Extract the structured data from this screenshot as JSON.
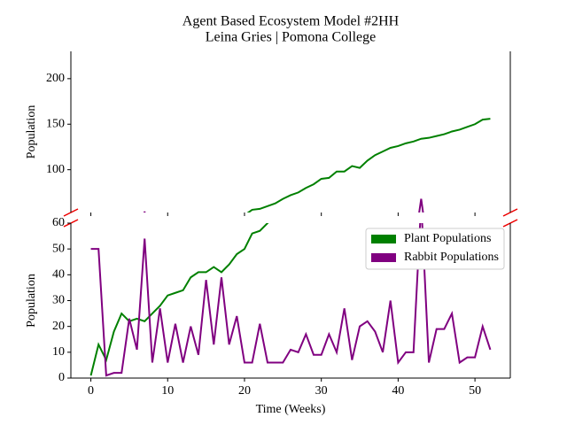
{
  "chart_data": {
    "type": "line",
    "title": "Agent Based Ecosystem Model #2HH",
    "subtitle": "Leina Gries | Pomona College",
    "xlabel": "Time (Weeks)",
    "x": [
      0,
      1,
      2,
      3,
      4,
      5,
      6,
      7,
      8,
      9,
      10,
      11,
      12,
      13,
      14,
      15,
      16,
      17,
      18,
      19,
      20,
      21,
      22,
      23,
      24,
      25,
      26,
      27,
      28,
      29,
      30,
      31,
      32,
      33,
      34,
      35,
      36,
      37,
      38,
      39,
      40,
      41,
      42,
      43,
      44,
      45,
      46,
      47,
      48,
      49,
      50,
      51,
      52
    ],
    "xlim": [
      -2.6,
      54.6
    ],
    "xticks": [
      0,
      10,
      20,
      30,
      40,
      50
    ],
    "panels": [
      {
        "ylabel": "Population",
        "ylim": [
          53,
          230
        ],
        "yticks": [
          100,
          150,
          200
        ]
      },
      {
        "ylabel": "Population",
        "ylim": [
          0,
          60
        ],
        "yticks": [
          0,
          10,
          20,
          30,
          40,
          50,
          60
        ]
      }
    ],
    "legend": "upper right",
    "series": [
      {
        "name": "Plant Populations",
        "color": "#008000",
        "values": [
          1,
          13,
          7,
          18,
          25,
          22,
          23,
          22,
          25,
          28,
          32,
          33,
          34,
          39,
          41,
          41,
          43,
          41,
          44,
          48,
          50,
          56,
          57,
          60,
          63,
          68,
          72,
          75,
          80,
          84,
          90,
          91,
          98,
          98,
          104,
          102,
          110,
          116,
          120,
          124,
          126,
          129,
          131,
          134,
          135,
          137,
          139,
          142,
          144,
          147,
          150,
          155,
          156
        ]
      },
      {
        "name": "Rabbit Populations",
        "color": "#800080",
        "values": [
          50,
          50,
          1,
          2,
          2,
          23,
          11,
          54,
          6,
          27,
          6,
          21,
          6,
          20,
          9,
          38,
          13,
          39,
          13,
          24,
          6,
          6,
          21,
          6,
          6,
          6,
          11,
          10,
          17,
          9,
          9,
          17,
          10,
          27,
          7,
          20,
          22,
          18,
          10,
          30,
          6,
          10,
          10,
          68,
          6,
          19,
          19,
          25,
          6,
          8,
          8,
          20,
          11
        ]
      }
    ]
  }
}
